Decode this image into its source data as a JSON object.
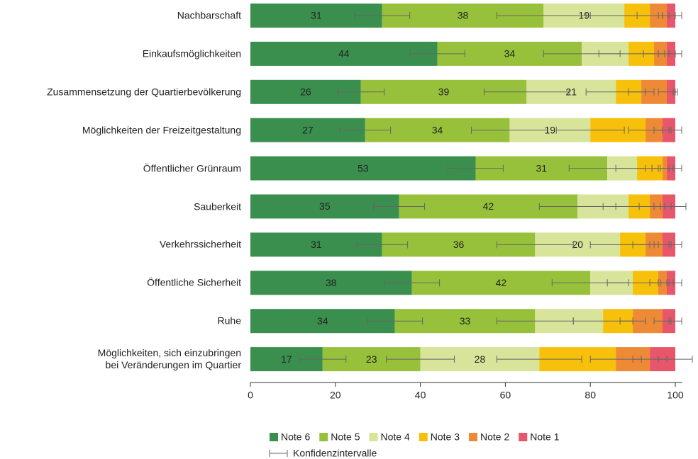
{
  "chart_data": {
    "type": "stacked_bar_horizontal",
    "categories": [
      "Nachbarschaft",
      "Einkaufsmöglichkeiten",
      "Zusammensetzung der Quartierbevölkerung",
      "Möglichkeiten der Freizeitgestaltung",
      "Öffentlicher Grünraum",
      "Sauberkeit",
      "Verkehrssicherheit",
      "Öffentliche Sicherheit",
      "Ruhe",
      "Möglichkeiten, sich einzubringen\nbei Veränderungen im Quartier"
    ],
    "series": [
      {
        "name": "Note 6",
        "color": "#3a8f4e",
        "values": [
          31,
          44,
          26,
          27,
          53,
          35,
          31,
          38,
          34,
          17
        ],
        "value_labels": [
          "31",
          "44",
          "26",
          "27",
          "53",
          "35",
          "31",
          "38",
          "34",
          "17"
        ],
        "errors": [
          6.5,
          6.5,
          5.5,
          6,
          6.5,
          6,
          6,
          6.5,
          6.5,
          5.5
        ]
      },
      {
        "name": "Note 5",
        "color": "#97c13a",
        "values": [
          38,
          34,
          39,
          34,
          31,
          42,
          36,
          42,
          33,
          23
        ],
        "value_labels": [
          "38",
          "34",
          "39",
          "34",
          "31",
          "42",
          "36",
          "42",
          "33",
          "23"
        ],
        "errors": [
          11,
          9,
          10,
          9,
          9,
          9,
          9,
          9,
          9,
          8
        ]
      },
      {
        "name": "Note 4",
        "color": "#d9e49b",
        "values": [
          19,
          11,
          21,
          19,
          7,
          12,
          20,
          10,
          16,
          28
        ],
        "value_labels": [
          "19",
          null,
          "21",
          "19",
          null,
          null,
          "20",
          null,
          null,
          "28"
        ],
        "errors": [
          9,
          7,
          7,
          8,
          5,
          6,
          7,
          6,
          7,
          10
        ]
      },
      {
        "name": "Note 3",
        "color": "#f7c00a",
        "values": [
          6,
          6,
          6,
          13,
          6,
          5,
          6,
          6,
          7,
          18
        ],
        "errors": [
          3,
          2.5,
          3,
          4,
          2.5,
          2.5,
          3,
          2,
          3,
          6
        ]
      },
      {
        "name": "Note 2",
        "color": "#ee8a36",
        "values": [
          4,
          3,
          6,
          4,
          1,
          3,
          4,
          2,
          7,
          8
        ],
        "errors": [
          2,
          2,
          2,
          2,
          1.5,
          2,
          2,
          1.5,
          2,
          4
        ]
      },
      {
        "name": "Note 1",
        "color": "#e8566b",
        "values": [
          2,
          2,
          2,
          3,
          2,
          3,
          3,
          2,
          3,
          6
        ],
        "errors": [
          1.5,
          1.5,
          0.5,
          1.5,
          1.5,
          2.5,
          1.5,
          1.5,
          1.5,
          4
        ]
      }
    ],
    "ci_label": "Konfidenzintervalle",
    "xlim": [
      0,
      100
    ],
    "xticks": [
      0,
      20,
      40,
      60,
      80,
      100
    ]
  }
}
